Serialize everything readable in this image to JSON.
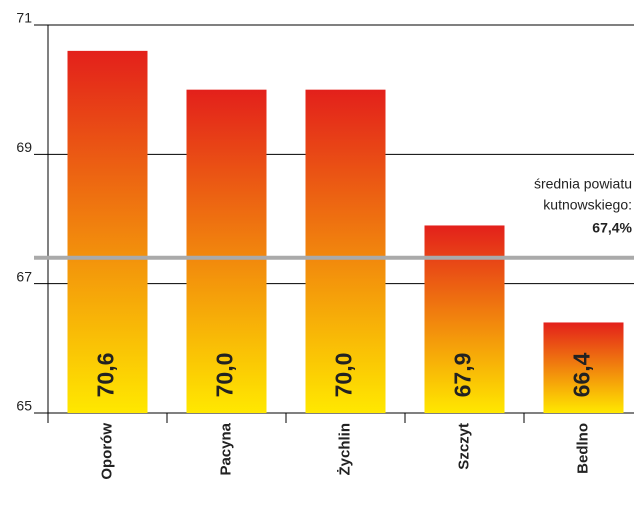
{
  "chart_data": {
    "type": "bar",
    "categories": [
      "Oporów",
      "Pacyna",
      "Żychlin",
      "Szczyt",
      "Bedlno"
    ],
    "values": [
      70.6,
      70.0,
      70.0,
      67.9,
      66.4
    ],
    "value_labels": [
      "70,6",
      "70,0",
      "70,0",
      "67,9",
      "66,4"
    ],
    "color_top": "#e3201b",
    "color_bottom": "#ffe800",
    "ylim": [
      65,
      71
    ],
    "yticks": [
      65,
      67,
      69,
      71
    ],
    "grid": true,
    "reference_line": {
      "value": 67.4,
      "label": "67,4%",
      "color": "#aaaaaa",
      "label_color": "#d7191c",
      "annotation": [
        "średnia powiatu",
        "kutnowskiego:"
      ]
    }
  }
}
